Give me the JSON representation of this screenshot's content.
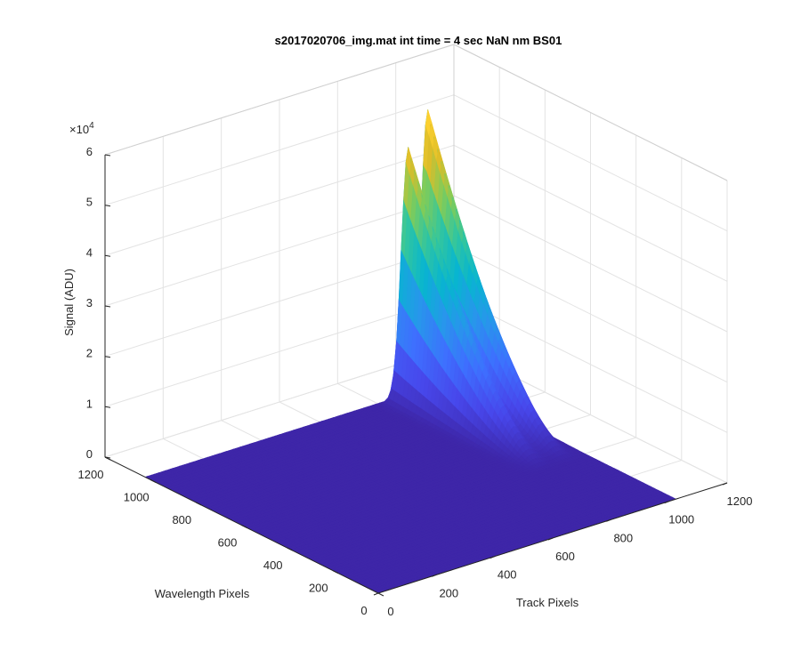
{
  "chart_data": {
    "type": "surface",
    "title": "s2017020706_img.mat int time = 4 sec  NaN nm BS01",
    "xlabel": "Track Pixels",
    "ylabel": "Wavelength Pixels",
    "zlabel": "Signal (ADU)",
    "z_exponent_label": "×10",
    "z_exponent_power": "4",
    "xlim": [
      0,
      1200
    ],
    "ylim": [
      0,
      1200
    ],
    "zlim": [
      0,
      60000
    ],
    "x_ticks": [
      "0",
      "200",
      "400",
      "600",
      "800",
      "1000",
      "1200"
    ],
    "y_ticks": [
      "0",
      "200",
      "400",
      "600",
      "800",
      "1000",
      "1200"
    ],
    "z_ticks": [
      "0",
      "1",
      "2",
      "3",
      "4",
      "5",
      "6"
    ],
    "grid": true,
    "colormap": "parula",
    "surface_extent": {
      "x": [
        0,
        1024
      ],
      "y": [
        0,
        1024
      ]
    },
    "ridges": [
      {
        "track_center": 880,
        "track_width": 24,
        "peak_signal": 51000,
        "peak_wavelength": 1000,
        "decay_to_wavelength": 380
      },
      {
        "track_center": 960,
        "track_width": 24,
        "peak_signal": 56000,
        "peak_wavelength": 1010,
        "decay_to_wavelength": 380
      }
    ]
  }
}
